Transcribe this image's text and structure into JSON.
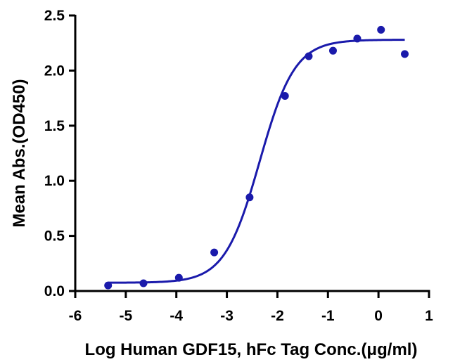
{
  "chart_data": {
    "type": "scatter",
    "title": "",
    "xlabel": "Log Human GDF15, hFc Tag Conc.(μg/ml)",
    "ylabel": "Mean Abs.(OD450)",
    "xlim": [
      -6,
      1
    ],
    "ylim": [
      0,
      2.5
    ],
    "x_ticks": [
      "-6",
      "-5",
      "-4",
      "-3",
      "-2",
      "-1",
      "0",
      "1"
    ],
    "y_ticks": [
      "0.0",
      "0.5",
      "1.0",
      "1.5",
      "2.0",
      "2.5"
    ],
    "grid": false,
    "legend": "none",
    "series": [
      {
        "points": [
          {
            "x": -5.35,
            "y": 0.05
          },
          {
            "x": -4.65,
            "y": 0.07
          },
          {
            "x": -3.95,
            "y": 0.12
          },
          {
            "x": -3.25,
            "y": 0.35
          },
          {
            "x": -2.55,
            "y": 0.85
          },
          {
            "x": -1.85,
            "y": 1.77
          },
          {
            "x": -1.38,
            "y": 2.13
          },
          {
            "x": -0.9,
            "y": 2.18
          },
          {
            "x": -0.42,
            "y": 2.29
          },
          {
            "x": 0.05,
            "y": 2.37
          },
          {
            "x": 0.52,
            "y": 2.15
          }
        ],
        "fit": {
          "model": "4PL",
          "bottom": 0.075,
          "top": 2.28,
          "log_ec50": -2.35,
          "hill_slope": 1.25,
          "x_range": [
            -5.35,
            0.52
          ]
        }
      }
    ],
    "colors": {
      "series": "#1a1aab",
      "axis": "#000000"
    }
  }
}
